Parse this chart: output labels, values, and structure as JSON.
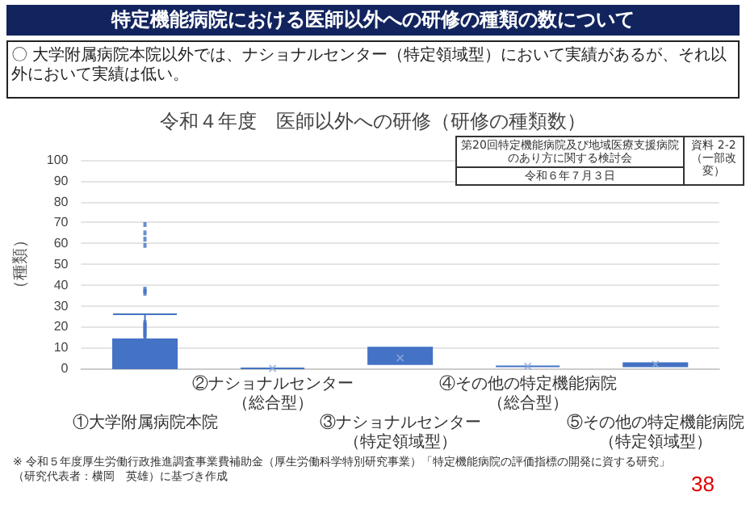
{
  "chart_data": {
    "type": "box",
    "title": "令和４年度　医師以外への研修（研修の種類数）",
    "subtitle": "特定機能病院における医師以外への研修の種類の数について",
    "ylabel": "（種類）",
    "categories": [
      "①大学附属病院本院",
      "②ナショナルセンター（総合型）",
      "③ナショナルセンター（特定領域型）",
      "④その他の特定機能病院（総合型）",
      "⑤その他の特定機能病院（特定領域型）"
    ],
    "boxes": [
      {
        "low": 0,
        "q1": 0,
        "median": 4,
        "q3": 14,
        "high": 26,
        "outliers": [
          15,
          16,
          17,
          18,
          19,
          20,
          21,
          22,
          36,
          37,
          38,
          59,
          62,
          65,
          69
        ]
      },
      {
        "low": 0,
        "q1": 0,
        "median": 0,
        "q3": 0,
        "high": 0,
        "mean": 0
      },
      {
        "low": 2,
        "q1": 2,
        "median": 5,
        "q3": 10,
        "high": 10,
        "mean": 5
      },
      {
        "low": 1,
        "q1": 1,
        "median": 1,
        "q3": 1,
        "high": 1,
        "mean": 1
      },
      {
        "low": 1,
        "q1": 1,
        "median": 2,
        "q3": 2.5,
        "high": 2.5,
        "mean": 2
      }
    ],
    "color": "#4472c4",
    "ylim": [
      0,
      100
    ],
    "yticks": [
      0,
      10,
      20,
      30,
      40,
      50,
      60,
      70,
      80,
      90,
      100
    ],
    "grid": "y",
    "annotations": [
      "〇 大学附属病院本院以外では、ナショナルセンター（特定領域型）において実績があるが、それ以外において実績は低い。",
      "第20回特定機能病院及び地域医療支援病院のあり方に関する検討会",
      "令和６年７月３日",
      "資料 2-2（一部改変）",
      "※ 令和５年度厚生労働行政推進調査事業費補助金（厚生労働科学特別研究事業）「特定機能病院の評価指標の開発に資する研究」（研究代表者：横岡　英雄）に基づき作成",
      "38"
    ]
  }
}
